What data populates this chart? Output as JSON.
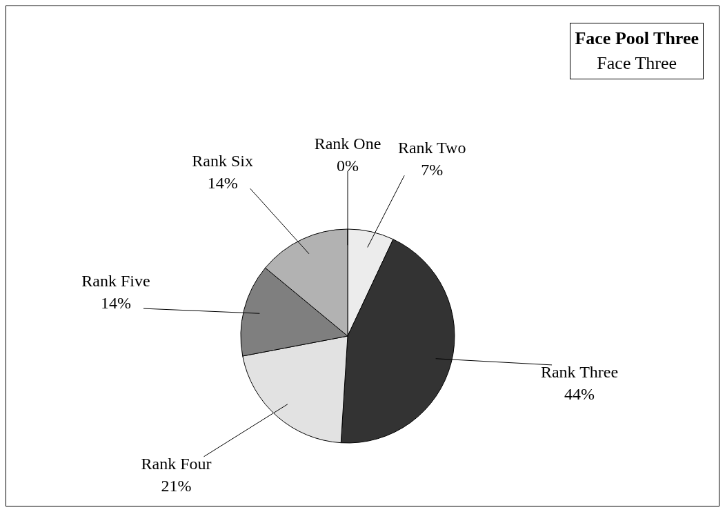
{
  "chart_data": {
    "type": "pie",
    "title": "Face Pool Three",
    "subtitle": "Face Three",
    "categories": [
      "Rank One",
      "Rank Two",
      "Rank Three",
      "Rank Four",
      "Rank Five",
      "Rank Six"
    ],
    "values": [
      0,
      7,
      44,
      21,
      14,
      14
    ],
    "value_labels": [
      "0%",
      "7%",
      "44%",
      "21%",
      "14%",
      "14%"
    ],
    "colors": [
      "#ffffff",
      "#ececec",
      "#333333",
      "#e2e2e2",
      "#7f7f7f",
      "#b2b2b2"
    ]
  }
}
